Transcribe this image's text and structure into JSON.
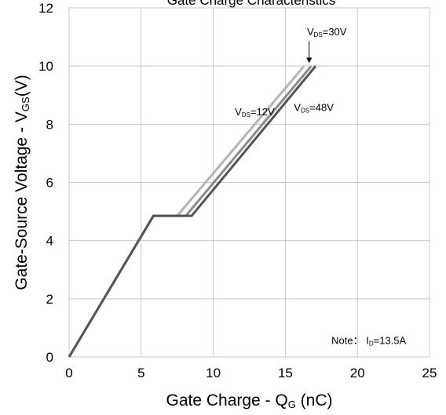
{
  "chart_data": {
    "type": "line",
    "title": "Gate Charge Characteristics",
    "xlabel": {
      "main": "Gate Charge - Q",
      "sub": "G",
      "unit": " (nC)"
    },
    "ylabel": {
      "main": "Gate-Source Voltage - V",
      "sub": "GS",
      "unit": "(V)"
    },
    "xlim": [
      0,
      25
    ],
    "ylim": [
      0,
      12
    ],
    "xticks": [
      0,
      5,
      10,
      15,
      20,
      25
    ],
    "yticks": [
      0,
      2,
      4,
      6,
      8,
      10,
      12
    ],
    "x_tick_labels": [
      "0",
      "5",
      "10",
      "15",
      "20",
      "25"
    ],
    "y_tick_labels": [
      "0",
      "2",
      "4",
      "6",
      "8",
      "10",
      "12"
    ],
    "grid": true,
    "legend": "none",
    "series": [
      {
        "color": "#b4b4b4",
        "points": [
          [
            0,
            0
          ],
          [
            5.85,
            4.85
          ],
          [
            7.5,
            4.85
          ],
          [
            16.3,
            10.0
          ]
        ]
      },
      {
        "color": "#8a8a8a",
        "points": [
          [
            0,
            0
          ],
          [
            5.85,
            4.85
          ],
          [
            8.1,
            4.85
          ],
          [
            16.8,
            10.0
          ]
        ]
      },
      {
        "color": "#555555",
        "points": [
          [
            0,
            0
          ],
          [
            5.85,
            4.85
          ],
          [
            8.5,
            4.85
          ],
          [
            17.1,
            10.0
          ]
        ]
      }
    ],
    "annotations": [
      {
        "main": "V",
        "sub": "DS",
        "rest": "=30V",
        "x": 16.5,
        "y": 11.05
      },
      {
        "main": "V",
        "sub": "DS",
        "rest": "=12V",
        "x": 11.5,
        "y": 8.3
      },
      {
        "main": "V",
        "sub": "DS",
        "rest": "=48V",
        "x": 15.6,
        "y": 8.45
      }
    ],
    "note": {
      "main": "Note： I",
      "sub": "D",
      "rest": "=13.5A",
      "x": 18.2,
      "y": 0.45
    }
  }
}
